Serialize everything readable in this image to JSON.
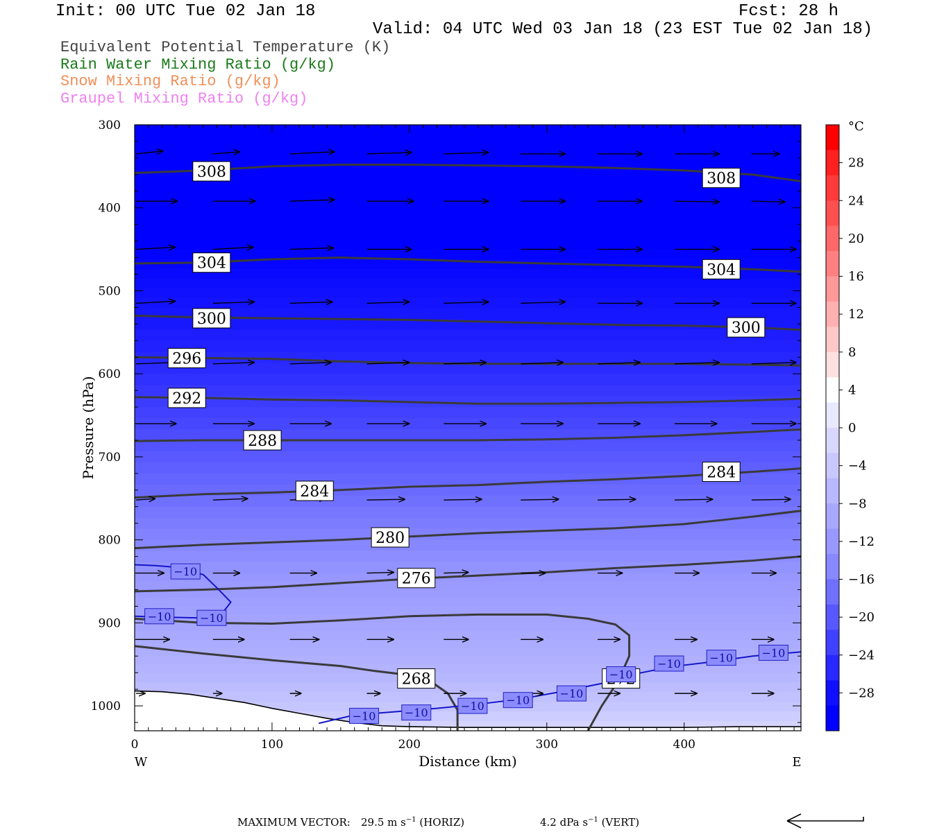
{
  "header": {
    "init": "Init: 00 UTC Tue 02 Jan 18",
    "fcst": "Fcst:   28 h",
    "valid": "Valid: 04 UTC Wed 03 Jan 18 (23 EST Tue 02 Jan 18)"
  },
  "fields": [
    {
      "label": "Equivalent Potential Temperature (K)",
      "color": "#444444"
    },
    {
      "label": "Rain Water Mixing Ratio (g/kg)",
      "color": "#1a7a1a"
    },
    {
      "label": "Snow Mixing Ratio (g/kg)",
      "color": "#f0905a"
    },
    {
      "label": "Graupel Mixing Ratio (g/kg)",
      "color": "#ee82ee"
    }
  ],
  "chart_data": {
    "type": "contour-cross-section",
    "xlabel": "Distance (km)",
    "ylabel": "Pressure (hPa)",
    "x_ticks": [
      "0",
      "100",
      "200",
      "300",
      "400"
    ],
    "y_ticks": [
      "300",
      "400",
      "500",
      "600",
      "700",
      "800",
      "900",
      "1000"
    ],
    "xlim": [
      0,
      485
    ],
    "ylim": [
      300,
      1030
    ],
    "west_label": "W",
    "east_label": "E",
    "theta_e_contours": [
      {
        "label": "308",
        "points": [
          [
            0,
            358
          ],
          [
            50,
            355
          ],
          [
            100,
            350
          ],
          [
            150,
            348
          ],
          [
            200,
            348
          ],
          [
            250,
            349
          ],
          [
            300,
            350
          ],
          [
            350,
            352
          ],
          [
            400,
            355
          ],
          [
            450,
            360
          ],
          [
            485,
            368
          ]
        ],
        "label_at": [
          [
            56,
            356
          ],
          [
            427,
            364
          ]
        ]
      },
      {
        "label": "304",
        "points": [
          [
            0,
            467
          ],
          [
            50,
            466
          ],
          [
            100,
            462
          ],
          [
            150,
            460
          ],
          [
            200,
            462
          ],
          [
            250,
            465
          ],
          [
            300,
            467
          ],
          [
            350,
            469
          ],
          [
            400,
            471
          ],
          [
            450,
            474
          ],
          [
            485,
            477
          ]
        ],
        "label_at": [
          [
            56,
            466
          ],
          [
            427,
            474
          ]
        ]
      },
      {
        "label": "300",
        "points": [
          [
            0,
            530
          ],
          [
            50,
            532
          ],
          [
            100,
            533
          ],
          [
            150,
            534
          ],
          [
            200,
            535
          ],
          [
            250,
            537
          ],
          [
            300,
            539
          ],
          [
            350,
            541
          ],
          [
            400,
            542
          ],
          [
            450,
            544
          ],
          [
            485,
            547
          ]
        ],
        "label_at": [
          [
            56,
            533
          ],
          [
            445,
            544
          ]
        ]
      },
      {
        "label": "296",
        "points": [
          [
            0,
            580
          ],
          [
            50,
            581
          ],
          [
            100,
            582
          ],
          [
            150,
            585
          ],
          [
            200,
            587
          ],
          [
            250,
            588
          ],
          [
            300,
            588
          ],
          [
            350,
            588
          ],
          [
            400,
            588
          ],
          [
            450,
            589
          ],
          [
            485,
            590
          ]
        ],
        "label_at": [
          [
            38,
            581
          ]
        ]
      },
      {
        "label": "292",
        "points": [
          [
            0,
            628
          ],
          [
            50,
            629
          ],
          [
            100,
            631
          ],
          [
            150,
            632
          ],
          [
            200,
            634
          ],
          [
            250,
            636
          ],
          [
            300,
            636
          ],
          [
            350,
            635
          ],
          [
            400,
            634
          ],
          [
            450,
            632
          ],
          [
            485,
            630
          ]
        ],
        "label_at": [
          [
            38,
            629
          ]
        ]
      },
      {
        "label": "288",
        "points": [
          [
            0,
            681
          ],
          [
            50,
            680
          ],
          [
            100,
            680
          ],
          [
            150,
            680
          ],
          [
            200,
            680
          ],
          [
            250,
            680
          ],
          [
            300,
            679
          ],
          [
            350,
            677
          ],
          [
            400,
            674
          ],
          [
            450,
            670
          ],
          [
            485,
            667
          ]
        ],
        "label_at": [
          [
            93,
            680
          ]
        ]
      },
      {
        "label": "284",
        "points": [
          [
            0,
            749
          ],
          [
            50,
            745
          ],
          [
            100,
            743
          ],
          [
            150,
            740
          ],
          [
            200,
            736
          ],
          [
            250,
            734
          ],
          [
            300,
            730
          ],
          [
            350,
            727
          ],
          [
            400,
            723
          ],
          [
            450,
            718
          ],
          [
            485,
            714
          ]
        ],
        "label_at": [
          [
            131,
            741
          ],
          [
            427,
            718
          ]
        ]
      },
      {
        "label": "280",
        "points": [
          [
            0,
            810
          ],
          [
            50,
            806
          ],
          [
            100,
            803
          ],
          [
            150,
            800
          ],
          [
            200,
            796
          ],
          [
            250,
            792
          ],
          [
            300,
            789
          ],
          [
            350,
            786
          ],
          [
            400,
            781
          ],
          [
            450,
            772
          ],
          [
            485,
            765
          ]
        ],
        "label_at": [
          [
            186,
            797
          ]
        ]
      },
      {
        "label": "276",
        "points": [
          [
            0,
            862
          ],
          [
            50,
            860
          ],
          [
            100,
            857
          ],
          [
            150,
            852
          ],
          [
            200,
            847
          ],
          [
            250,
            843
          ],
          [
            300,
            839
          ],
          [
            350,
            834
          ],
          [
            400,
            830
          ],
          [
            450,
            825
          ],
          [
            485,
            820
          ]
        ],
        "label_at": [
          [
            205,
            846
          ]
        ]
      },
      {
        "label": "272",
        "points": [
          [
            0,
            895
          ],
          [
            50,
            900
          ],
          [
            100,
            901
          ],
          [
            150,
            897
          ],
          [
            200,
            892
          ],
          [
            250,
            890
          ],
          [
            300,
            890
          ],
          [
            330,
            895
          ],
          [
            350,
            902
          ],
          [
            360,
            915
          ],
          [
            360,
            940
          ],
          [
            352,
            970
          ],
          [
            340,
            1000
          ],
          [
            330,
            1030
          ]
        ],
        "label_at": [
          [
            354,
            967
          ]
        ]
      },
      {
        "label": "268",
        "points": [
          [
            0,
            928
          ],
          [
            50,
            937
          ],
          [
            100,
            945
          ],
          [
            150,
            952
          ],
          [
            175,
            958
          ],
          [
            200,
            963
          ],
          [
            215,
            970
          ],
          [
            228,
            985
          ],
          [
            235,
            1005
          ],
          [
            235,
            1030
          ]
        ],
        "label_at": [
          [
            205,
            967
          ]
        ]
      }
    ],
    "temp_minus10_contour": {
      "label": "−10",
      "points": [
        [
          0,
          892
        ],
        [
          20,
          893
        ],
        [
          45,
          894
        ],
        [
          63,
          890
        ],
        [
          70,
          875
        ],
        [
          60,
          858
        ],
        [
          50,
          842
        ],
        [
          30,
          833
        ],
        [
          15,
          831
        ],
        [
          0,
          830
        ],
        [
          134,
          1021
        ],
        [
          160,
          1011
        ],
        [
          190,
          1007
        ],
        [
          220,
          1003
        ],
        [
          250,
          998
        ],
        [
          280,
          992
        ],
        [
          310,
          983
        ],
        [
          340,
          973
        ],
        [
          360,
          963
        ],
        [
          390,
          953
        ],
        [
          420,
          947
        ],
        [
          450,
          940
        ],
        [
          485,
          935
        ]
      ],
      "label_at": [
        [
          18,
          892
        ],
        [
          56,
          894
        ],
        [
          37,
          838
        ],
        [
          167,
          1012
        ],
        [
          205,
          1008
        ],
        [
          246,
          1000
        ],
        [
          279,
          993
        ],
        [
          318,
          985
        ],
        [
          354,
          962
        ],
        [
          389,
          949
        ],
        [
          427,
          942
        ],
        [
          465,
          936
        ]
      ]
    },
    "colorbar": {
      "unit": "°C",
      "labels": [
        "28",
        "24",
        "20",
        "16",
        "12",
        "8",
        "4",
        "0",
        "−4",
        "−8",
        "−12",
        "−16",
        "−20",
        "−24",
        "−28"
      ],
      "label_values": [
        28,
        24,
        20,
        16,
        12,
        8,
        4,
        0,
        -4,
        -8,
        -12,
        -16,
        -20,
        -24,
        -28
      ],
      "colors": [
        "#ff0000",
        "#ff2020",
        "#ff3a3a",
        "#ff5050",
        "#ff6868",
        "#ff8080",
        "#ff9898",
        "#ffb0b0",
        "#ffc8c8",
        "#ffe0e0",
        "#ffffff",
        "#e8e8ff",
        "#d8d8ff",
        "#c8c8ff",
        "#b8b8ff",
        "#a8a8ff",
        "#9898ff",
        "#8888ff",
        "#7070ff",
        "#5858ff",
        "#4040ff",
        "#2828ff",
        "#1010ff",
        "#0000ff"
      ]
    },
    "temp_levels": [
      {
        "p": 300,
        "t": -36
      },
      {
        "p": 450,
        "t": -36
      },
      {
        "p": 520,
        "t": -29
      },
      {
        "p": 600,
        "t": -25
      },
      {
        "p": 680,
        "t": -20
      },
      {
        "p": 760,
        "t": -16
      },
      {
        "p": 840,
        "t": -12
      },
      {
        "p": 900,
        "t": -10
      },
      {
        "p": 960,
        "t": -8
      },
      {
        "p": 1030,
        "t": -4
      }
    ],
    "terrain_surface": [
      [
        0,
        982
      ],
      [
        20,
        983
      ],
      [
        40,
        986
      ],
      [
        60,
        991
      ],
      [
        80,
        996
      ],
      [
        100,
        1003
      ],
      [
        120,
        1009
      ],
      [
        140,
        1015
      ],
      [
        160,
        1020
      ],
      [
        180,
        1024
      ],
      [
        200,
        1025
      ],
      [
        240,
        1026
      ],
      [
        280,
        1026
      ],
      [
        320,
        1026
      ],
      [
        360,
        1026
      ],
      [
        400,
        1026
      ],
      [
        440,
        1025
      ],
      [
        485,
        1025
      ]
    ],
    "wind_vector_rows": [
      {
        "p": 335,
        "x": [
          0,
          56,
          112,
          168,
          224,
          280,
          336,
          392,
          448
        ],
        "dx": [
          24,
          24,
          40,
          40,
          40,
          40,
          40,
          40,
          25
        ],
        "dy": [
          -4,
          -3,
          -3,
          -2,
          -2,
          0,
          0,
          0,
          0
        ]
      },
      {
        "p": 392,
        "x": [
          0,
          56,
          112,
          168,
          224,
          280,
          336,
          392,
          448
        ],
        "dx": [
          37,
          38,
          40,
          42,
          40,
          40,
          40,
          40,
          30
        ],
        "dy": [
          0,
          0,
          -2,
          0,
          0,
          0,
          0,
          1,
          1
        ]
      },
      {
        "p": 450,
        "x": [
          0,
          56,
          112,
          168,
          224,
          280,
          336,
          392,
          448
        ],
        "dx": [
          35,
          36,
          39,
          40,
          40,
          40,
          40,
          40,
          40
        ],
        "dy": [
          -3,
          -3,
          -2,
          0,
          0,
          0,
          0,
          0,
          0
        ]
      },
      {
        "p": 515,
        "x": [
          0,
          56,
          112,
          168,
          224,
          280,
          336,
          392,
          448
        ],
        "dx": [
          35,
          37,
          38,
          38,
          40,
          40,
          40,
          40,
          40
        ],
        "dy": [
          -3,
          -2,
          -2,
          -2,
          -2,
          -2,
          0,
          0,
          0
        ]
      },
      {
        "p": 588,
        "x": [
          0,
          56,
          112,
          168,
          224,
          280,
          336,
          392,
          448
        ],
        "dx": [
          35,
          37,
          37,
          38,
          38,
          38,
          38,
          40,
          40
        ],
        "dy": [
          -2,
          -2,
          -2,
          -2,
          -2,
          -2,
          -2,
          -2,
          -2
        ]
      },
      {
        "p": 660,
        "x": [
          0,
          56,
          112,
          168,
          224,
          280,
          336,
          392,
          448
        ],
        "dx": [
          36,
          37,
          37,
          38,
          38,
          38,
          38,
          38,
          40
        ],
        "dy": [
          0,
          0,
          0,
          0,
          0,
          0,
          0,
          0,
          0
        ]
      },
      {
        "p": 752,
        "x": [
          0,
          56,
          112,
          168,
          224,
          280,
          336,
          392,
          448
        ],
        "dx": [
          17,
          31,
          32,
          34,
          34,
          34,
          34,
          34,
          35
        ],
        "dy": [
          -2,
          -2,
          -2,
          -1,
          -1,
          -1,
          -1,
          -1,
          -1
        ]
      },
      {
        "p": 840,
        "x": [
          0,
          56,
          112,
          168,
          224,
          280,
          336,
          392,
          448
        ],
        "dx": [
          25,
          24,
          24,
          24,
          22,
          22,
          22,
          22,
          22
        ],
        "dy": [
          0,
          0,
          0,
          -1,
          -1,
          0,
          0,
          0,
          0
        ]
      },
      {
        "p": 920,
        "x": [
          0,
          56,
          112,
          168,
          224,
          280,
          336,
          392,
          448
        ],
        "dx": [
          30,
          28,
          26,
          24,
          22,
          20,
          20,
          20,
          20
        ],
        "dy": [
          0,
          0,
          0,
          0,
          0,
          0,
          0,
          0,
          0
        ]
      },
      {
        "p": 985,
        "x": [
          0,
          56,
          112,
          168,
          224,
          280,
          336,
          392,
          448
        ],
        "dx": [
          8,
          8,
          10,
          12,
          20,
          20,
          20,
          20,
          20
        ],
        "dy": [
          0,
          0,
          0,
          0,
          0,
          0,
          0,
          0,
          0
        ]
      }
    ]
  },
  "footer": {
    "max_vector_label": "MAXIMUM VECTOR:",
    "horiz_value": "29.5 m s",
    "horiz_exp": "−1",
    "horiz_tag": " (HORIZ)",
    "vert_value": "4.2 dPa s",
    "vert_exp": "−1",
    "vert_tag": " (VERT)"
  }
}
